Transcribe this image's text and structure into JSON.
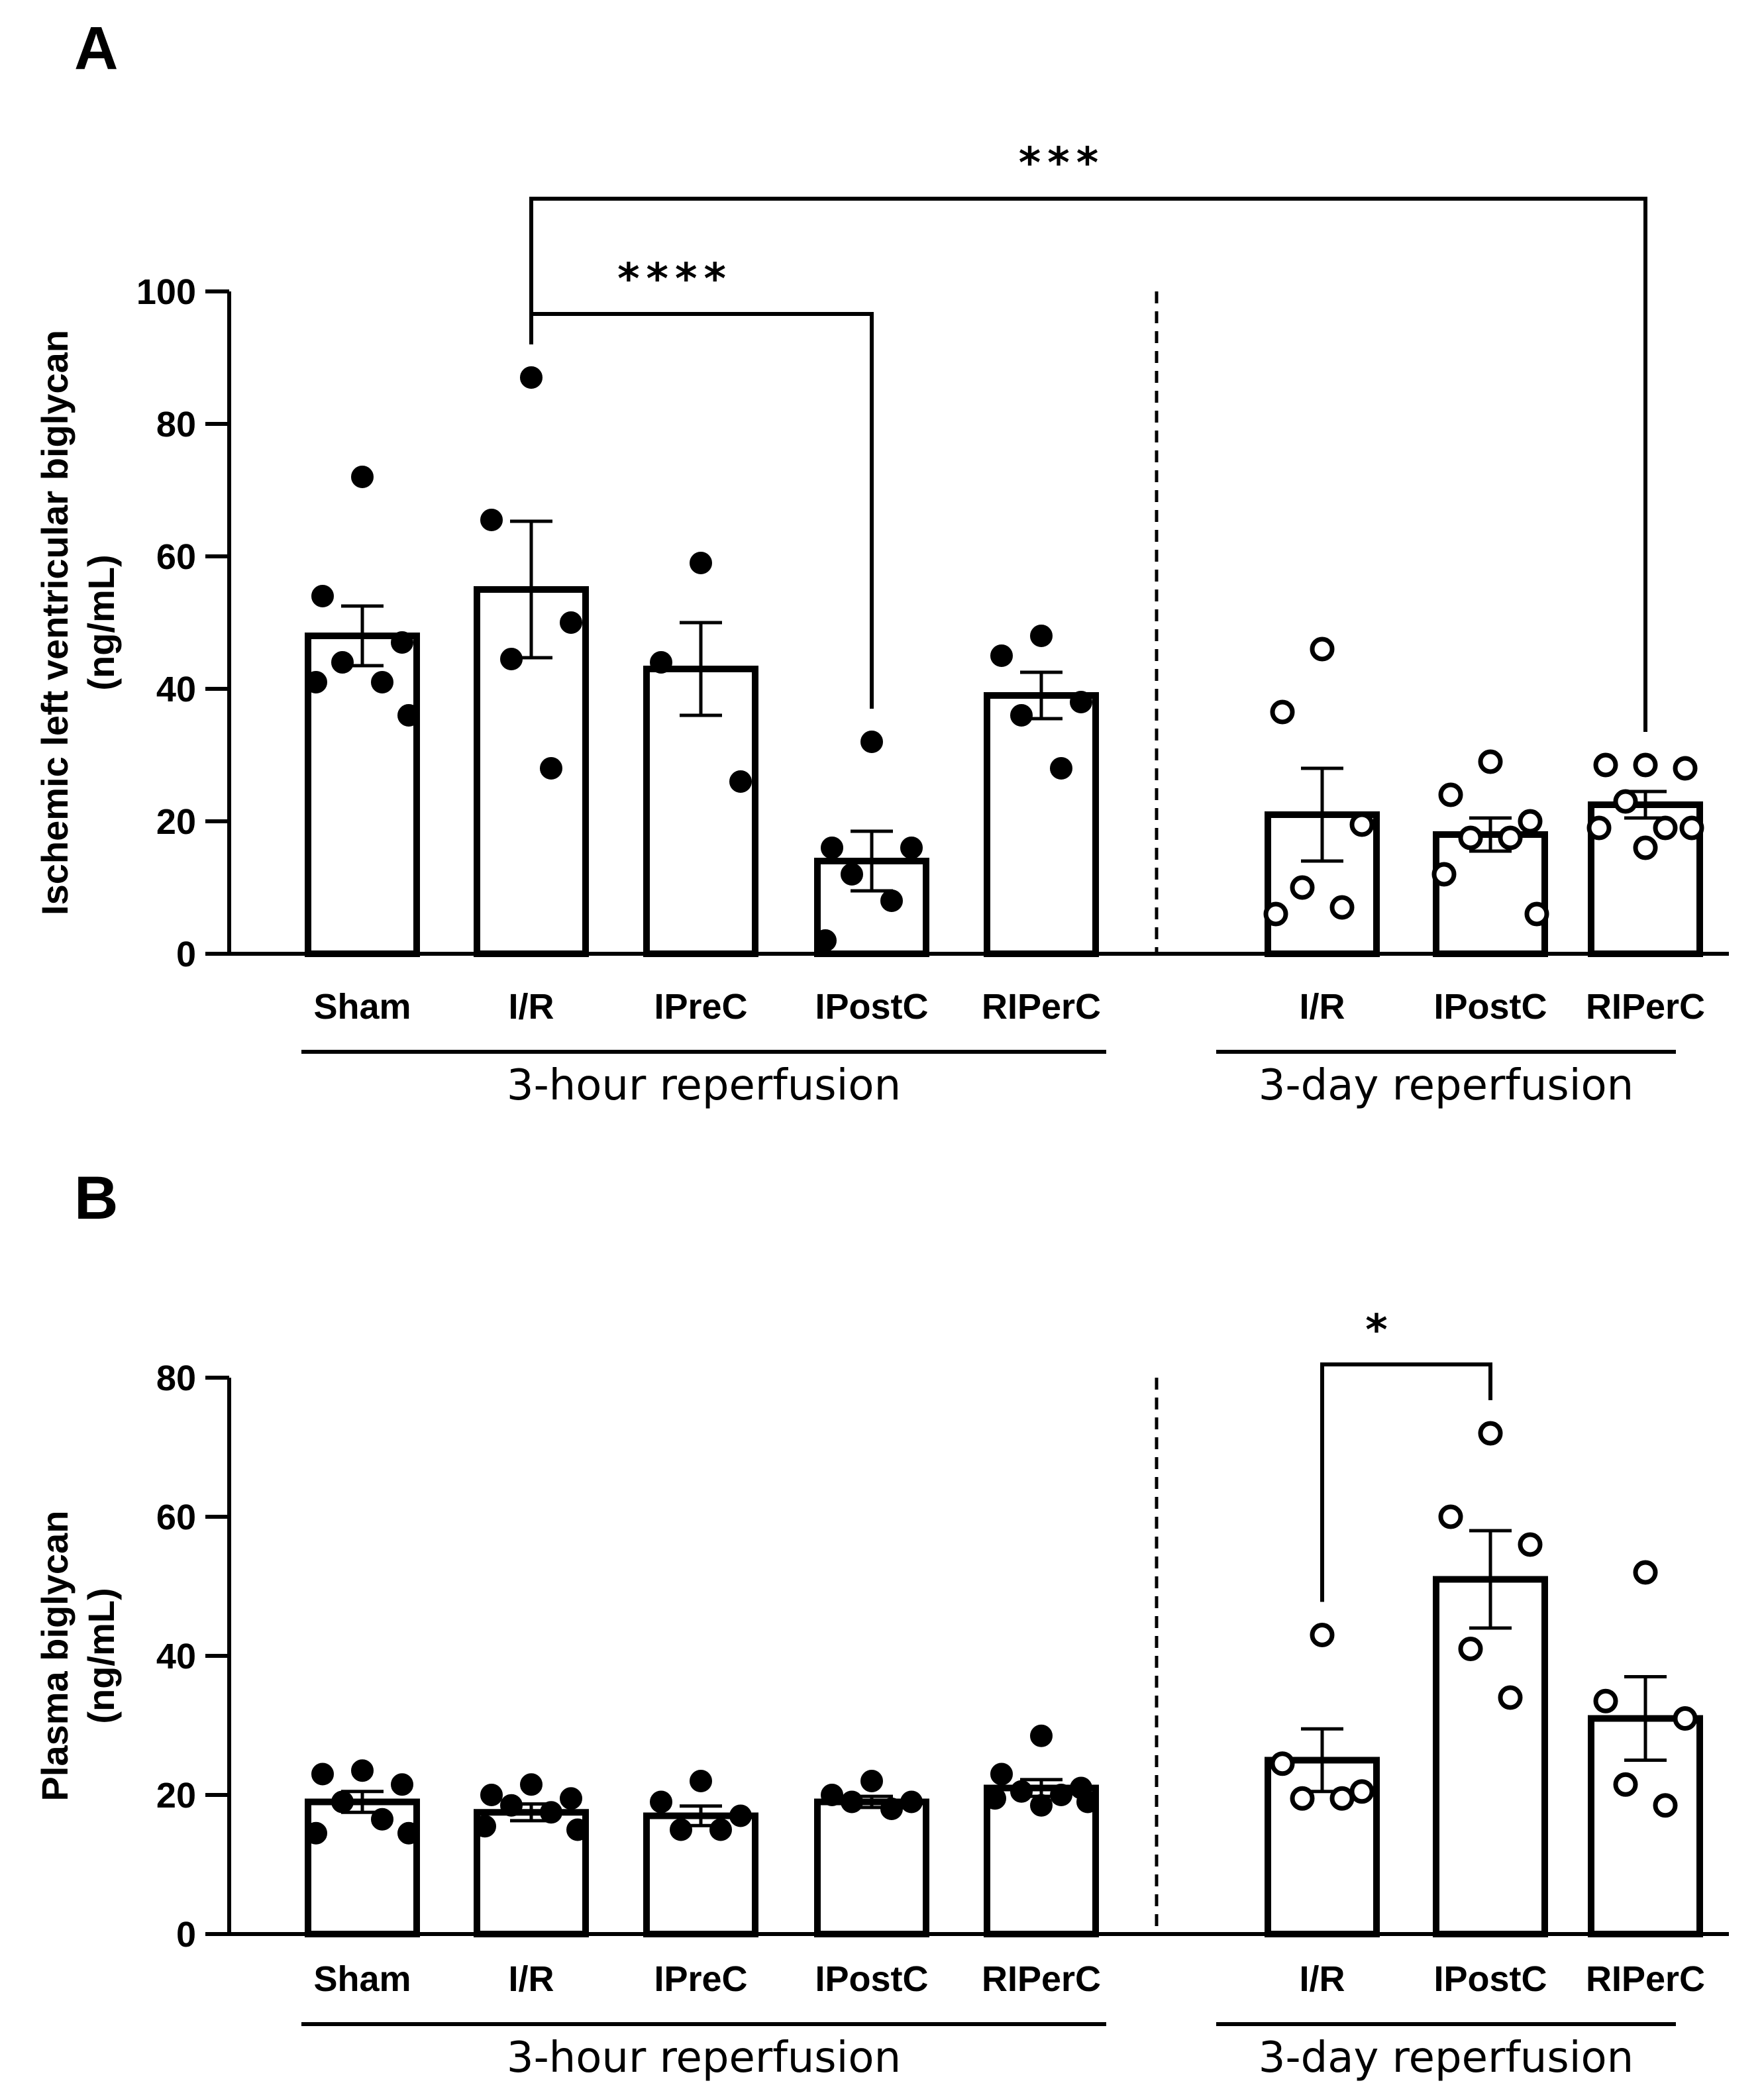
{
  "chart_data": [
    {
      "panel": "A",
      "type": "bar",
      "ylabel_line1": "Ischemic left ventricular biglycan",
      "ylabel_line2": "(ng/mL)",
      "ylim": [
        0,
        100
      ],
      "yticks": [
        0,
        20,
        40,
        60,
        80,
        100
      ],
      "categories": [
        "Sham",
        "I/R",
        "IPreC",
        "IPostC",
        "RIPerC",
        "I/R",
        "IPostC",
        "RIPerC"
      ],
      "groups": [
        {
          "label": "3-hour reperfusion",
          "from": 0,
          "to": 4
        },
        {
          "label": "3-day reperfusion",
          "from": 5,
          "to": 7
        }
      ],
      "series": [
        {
          "category": "Sham",
          "mean": 48,
          "sem": 4.5,
          "filled": true,
          "points": [
            72,
            54,
            47,
            44,
            41,
            41,
            36
          ]
        },
        {
          "category": "I/R",
          "mean": 55,
          "sem": 10.3,
          "filled": true,
          "points": [
            87,
            65.5,
            50,
            44.5,
            28
          ]
        },
        {
          "category": "IPreC",
          "mean": 43,
          "sem": 7,
          "filled": true,
          "points": [
            59,
            44,
            26
          ]
        },
        {
          "category": "IPostC",
          "mean": 14,
          "sem": 4.5,
          "filled": true,
          "points": [
            32,
            16,
            16,
            12,
            8,
            2
          ]
        },
        {
          "category": "RIPerC",
          "mean": 39,
          "sem": 3.5,
          "filled": true,
          "points": [
            48,
            45,
            38,
            36,
            28
          ]
        },
        {
          "category": "I/R",
          "mean": 21,
          "sem": 7,
          "filled": false,
          "points": [
            46,
            36.5,
            19.5,
            10,
            7,
            6
          ]
        },
        {
          "category": "IPostC",
          "mean": 18,
          "sem": 2.5,
          "filled": false,
          "points": [
            29,
            24,
            20,
            17.5,
            17.5,
            12,
            6
          ]
        },
        {
          "category": "RIPerC",
          "mean": 22.5,
          "sem": 2,
          "filled": false,
          "points": [
            28.5,
            28.5,
            28,
            23,
            19,
            19,
            19,
            16
          ]
        }
      ],
      "significance": [
        {
          "from": 1,
          "to": 7,
          "label": "***"
        },
        {
          "from": 1,
          "to": 3,
          "label": "****"
        }
      ]
    },
    {
      "panel": "B",
      "type": "bar",
      "ylabel_line1": "Plasma biglycan",
      "ylabel_line2": "(ng/mL)",
      "ylim": [
        0,
        80
      ],
      "yticks": [
        0,
        20,
        40,
        60,
        80
      ],
      "categories": [
        "Sham",
        "I/R",
        "IPreC",
        "IPostC",
        "RIPerC",
        "I/R",
        "IPostC",
        "RIPerC"
      ],
      "groups": [
        {
          "label": "3-hour reperfusion",
          "from": 0,
          "to": 4
        },
        {
          "label": "3-day reperfusion",
          "from": 5,
          "to": 7
        }
      ],
      "series": [
        {
          "category": "Sham",
          "mean": 19,
          "sem": 1.5,
          "filled": true,
          "points": [
            23.5,
            23,
            21.5,
            19,
            16.5,
            14.5,
            14.5
          ]
        },
        {
          "category": "I/R",
          "mean": 17.5,
          "sem": 1.2,
          "filled": true,
          "points": [
            21.5,
            20,
            19.5,
            18.5,
            17.5,
            15.5,
            15
          ]
        },
        {
          "category": "IPreC",
          "mean": 17,
          "sem": 1.4,
          "filled": true,
          "points": [
            22,
            19,
            17,
            15,
            15
          ]
        },
        {
          "category": "IPostC",
          "mean": 19,
          "sem": 0.8,
          "filled": true,
          "points": [
            22,
            20,
            19,
            19,
            18
          ]
        },
        {
          "category": "RIPerC",
          "mean": 21,
          "sem": 1.2,
          "filled": true,
          "points": [
            28.5,
            23,
            21,
            20.5,
            20,
            19.5,
            19,
            18.5
          ]
        },
        {
          "category": "I/R",
          "mean": 25,
          "sem": 4.5,
          "filled": false,
          "points": [
            43,
            24.5,
            20.5,
            19.5,
            19.5
          ]
        },
        {
          "category": "IPostC",
          "mean": 51,
          "sem": 7,
          "filled": false,
          "points": [
            72,
            60,
            56,
            41,
            34
          ]
        },
        {
          "category": "RIPerC",
          "mean": 31,
          "sem": 6,
          "filled": false,
          "points": [
            52,
            33.5,
            31,
            21.5,
            18.5
          ]
        }
      ],
      "significance": [
        {
          "from": 5,
          "to": 6,
          "label": "*"
        }
      ]
    }
  ]
}
